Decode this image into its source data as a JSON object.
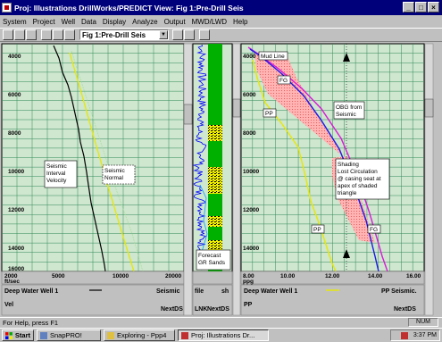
{
  "window": {
    "title": "Proj: Illustrations   DrillWorks/PREDICT   View: Fig 1:Pre-Drill Seis",
    "min_label": "_",
    "max_label": "□",
    "close_label": "×"
  },
  "menu": [
    "System",
    "Project",
    "Well",
    "Data",
    "Display",
    "Analyze",
    "Output",
    "MWD/LWD",
    "Help"
  ],
  "toolbar": {
    "view_select": "Fig 1:Pre-Drill Seis"
  },
  "left_track": {
    "depth_ticks": [
      "4000",
      "6000",
      "8000",
      "10000",
      "12000",
      "14000",
      "16000"
    ],
    "x_ticks": [
      "2000",
      "5000",
      "10000",
      "20000"
    ],
    "unit": "ft/sec",
    "annotations": {
      "interval": "Seismic\nInterval\nVelocity",
      "normal": "Seismic\nNormal"
    },
    "legend_well": "Deep Water Well 1",
    "legend_series": "Seismic",
    "legend_prop": "Vel",
    "next_label": "NextDS"
  },
  "mid_track": {
    "annotation": "Forecast\nGR Sands",
    "legend_file": "file",
    "legend_sh": "sh",
    "legend_lnk": "LNK",
    "next_label": "NextDS"
  },
  "right_track": {
    "depth_ticks": [
      "4000",
      "6000",
      "8000",
      "10000",
      "12000",
      "14000"
    ],
    "x_ticks": [
      "8.00",
      "10.00",
      "12.00",
      "14.00",
      "16.00"
    ],
    "unit": "ppg",
    "annotations": {
      "mudline": "Mud Line",
      "fg_top": "FG",
      "pp_top": "PP",
      "obg": "OBG from\nSeismic",
      "shading": "Shading\nLost Circulation\n@ casing seat at\napex of shaded\ntriangle",
      "pp_bottom": "PP",
      "fg_bottom": "FG"
    },
    "legend_well": "Deep Water Well 1",
    "legend_series": "PP Seismic.",
    "legend_prop": "PP",
    "next_label": "NextDS"
  },
  "status": {
    "text": "For Help, press F1",
    "num": "NUM"
  },
  "taskbar": {
    "start": "Start",
    "tasks": [
      "SnapPRO!",
      "Exploring - Ppp4",
      "Proj: Illustrations  Dr..."
    ],
    "clock": "3:37 PM"
  },
  "colors": {
    "titlebar": "#00007b",
    "grid": "#2e8b57",
    "plot_bg": "#cfe6cf",
    "interval_velocity": "#000000",
    "normal_velocity": "#e8e800",
    "obg": "#d81bd8",
    "fg": "#1a1ae8",
    "pp": "#e8e800",
    "shading": "#ff9b9b",
    "gr_log": "#0000ff",
    "sand": "#00b000"
  }
}
